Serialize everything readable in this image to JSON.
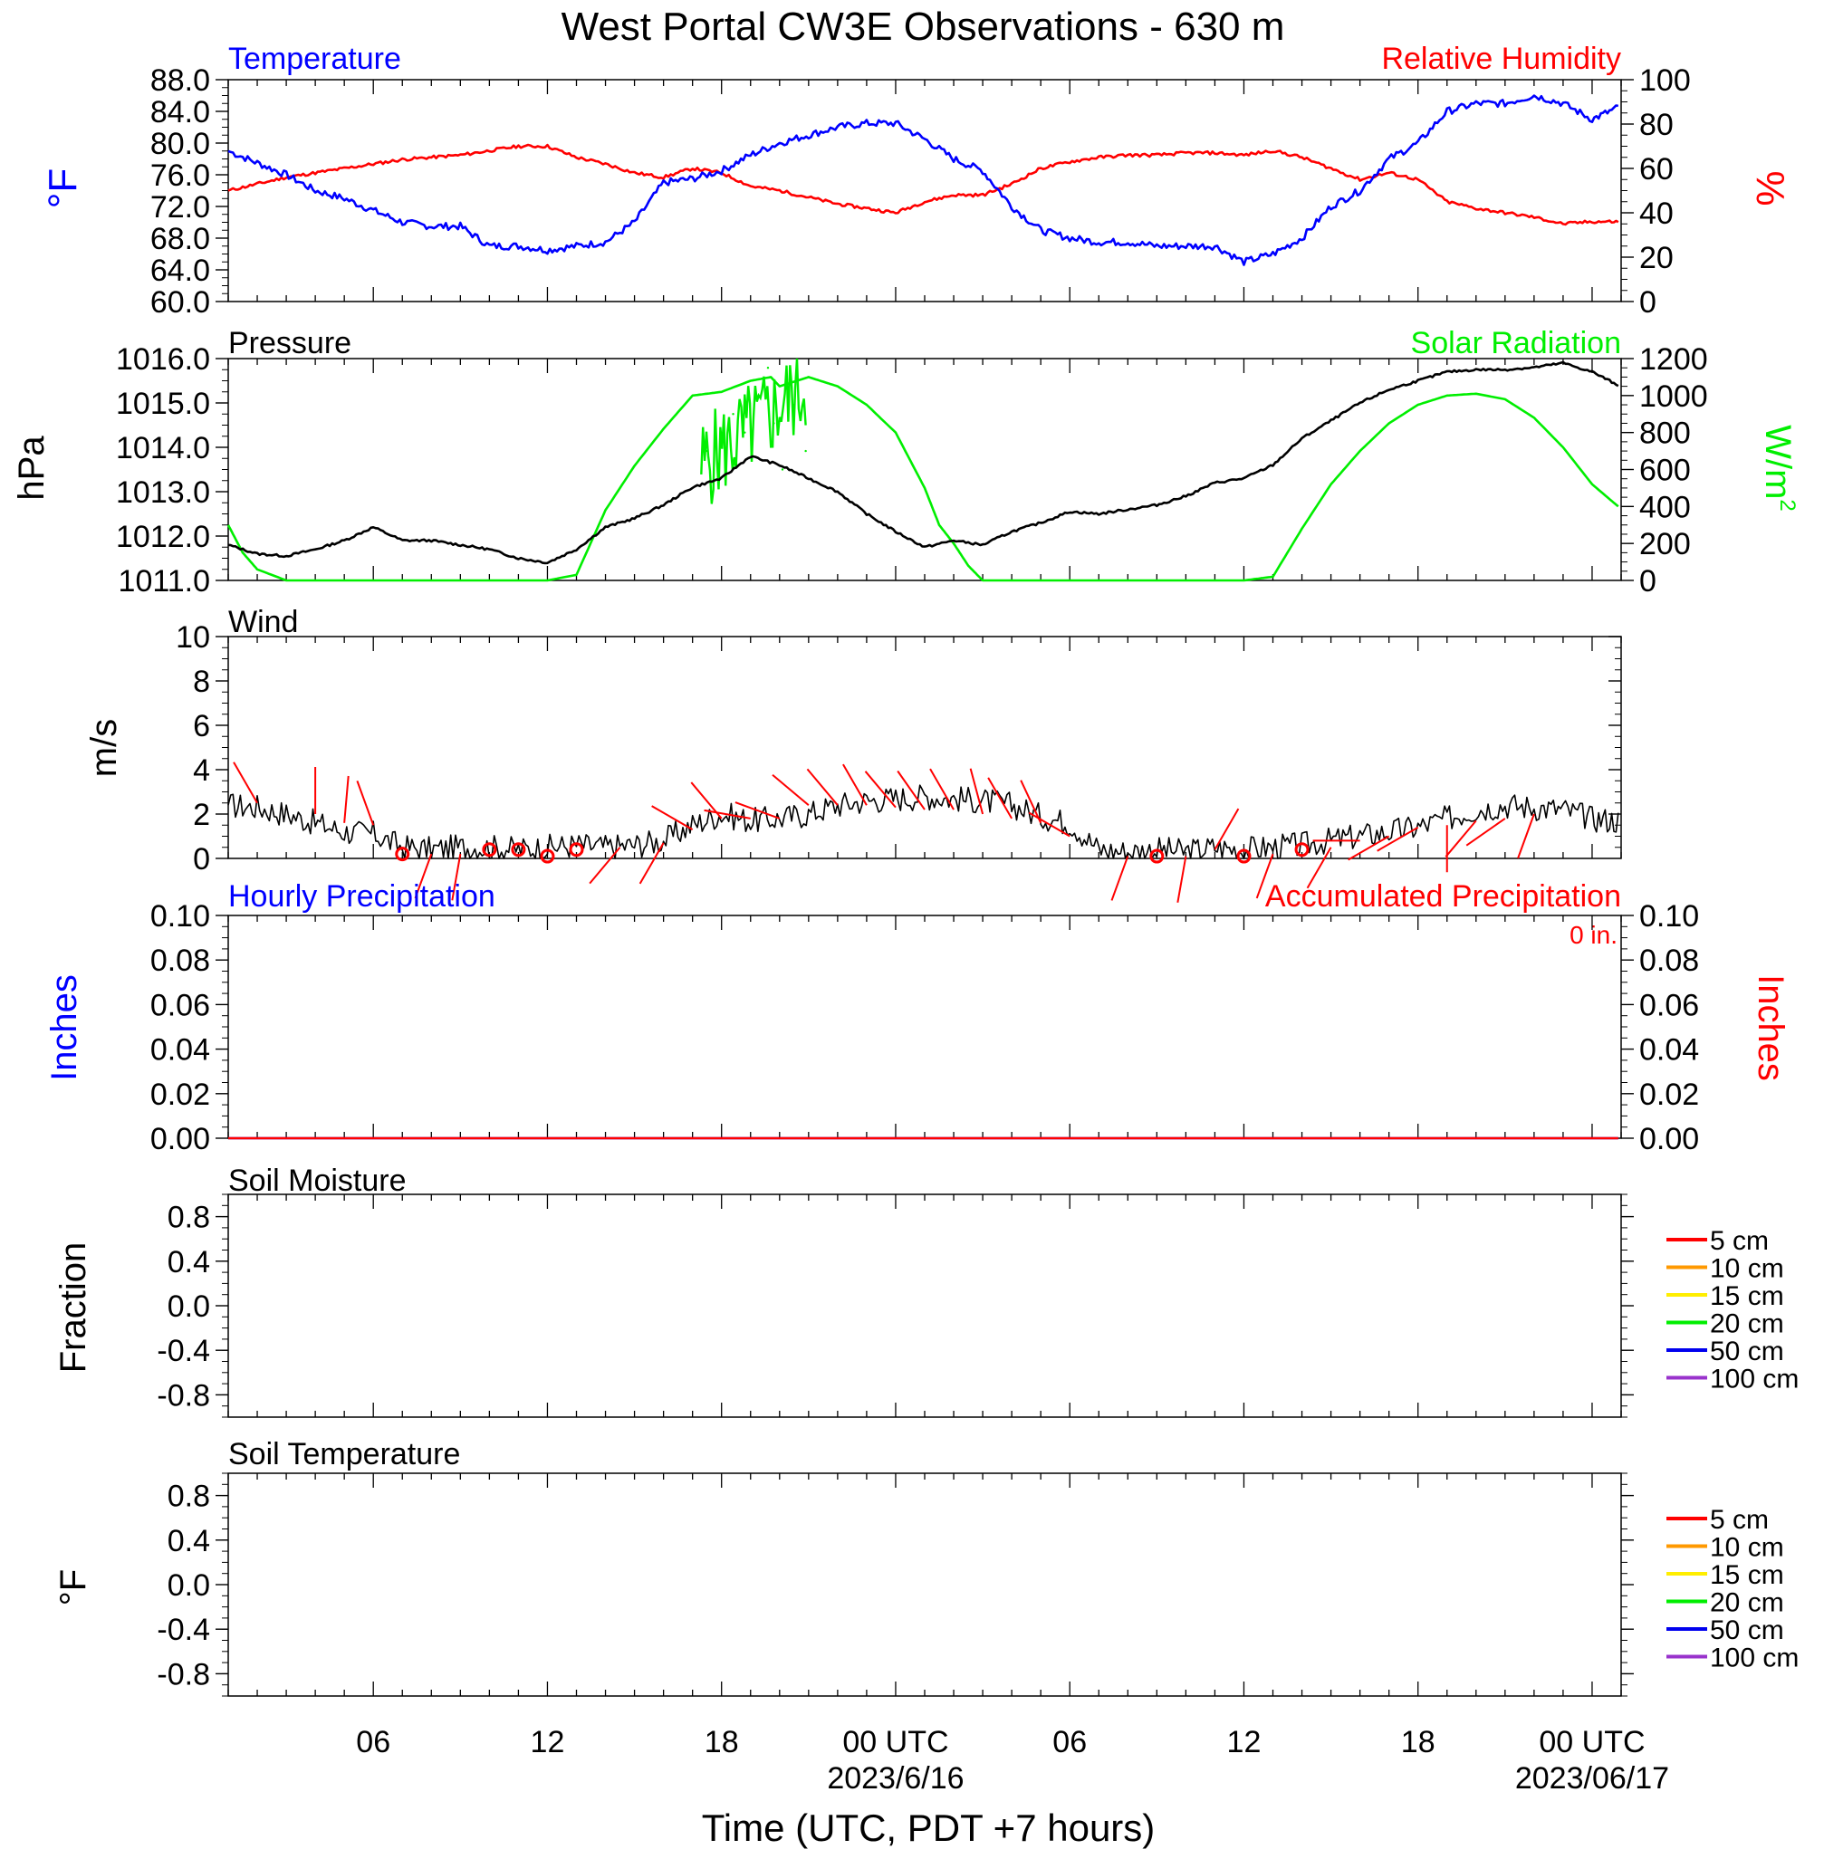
{
  "title": "West Portal CW3E Observations - 630 m",
  "x_axis": {
    "label": "Time (UTC, PDT +7 hours)",
    "start_hour": 1,
    "end_hour": 49,
    "major_ticks": [
      {
        "hour": 6,
        "label": "06"
      },
      {
        "hour": 12,
        "label": "12"
      },
      {
        "hour": 18,
        "label": "18"
      },
      {
        "hour": 24,
        "label": "00 UTC",
        "date": "2023/6/16"
      },
      {
        "hour": 30,
        "label": "06"
      },
      {
        "hour": 36,
        "label": "12"
      },
      {
        "hour": 42,
        "label": "18"
      },
      {
        "hour": 48,
        "label": "00 UTC",
        "date": "2023/06/17"
      }
    ]
  },
  "colors": {
    "temperature": "#0000ff",
    "humidity": "#ff0000",
    "pressure": "#000000",
    "solar": "#00ee00",
    "wind": "#000000",
    "barb": "#ff0000",
    "hourly_precip": "#0000ff",
    "accum_precip": "#ff0000"
  },
  "panels": {
    "temp_rh": {
      "left_title": "Temperature",
      "right_title": "Relative Humidity",
      "left_unit": "°F",
      "right_unit": "%",
      "left_ticks": [
        "88.0",
        "84.0",
        "80.0",
        "76.0",
        "72.0",
        "68.0",
        "64.0",
        "60.0"
      ],
      "right_ticks": [
        "100",
        "80",
        "60",
        "40",
        "20",
        "0"
      ]
    },
    "pressure_solar": {
      "left_title": "Pressure",
      "right_title": "Solar Radiation",
      "left_unit": "hPa",
      "right_unit": "W/m",
      "right_unit_sup": "2",
      "left_ticks": [
        "1016.0",
        "1015.0",
        "1014.0",
        "1013.0",
        "1012.0",
        "1011.0"
      ],
      "right_ticks": [
        "1200",
        "1000",
        "800",
        "600",
        "400",
        "200",
        "0"
      ]
    },
    "wind": {
      "title": "Wind",
      "unit": "m/s",
      "ticks": [
        "10",
        "8",
        "6",
        "4",
        "2",
        "0"
      ]
    },
    "precip": {
      "left_title": "Hourly Precipitation",
      "right_title": "Accumulated Precipitation",
      "total": "0 in.",
      "left_unit": "Inches",
      "right_unit": "Inches",
      "left_ticks": [
        "0.10",
        "0.08",
        "0.06",
        "0.04",
        "0.02",
        "0.00"
      ],
      "right_ticks": [
        "0.10",
        "0.08",
        "0.06",
        "0.04",
        "0.02",
        "0.00"
      ]
    },
    "soil_moisture": {
      "title": "Soil Moisture",
      "unit": "Fraction",
      "ticks": [
        "0.8",
        "0.4",
        "0.0",
        "-0.4",
        "-0.8"
      ]
    },
    "soil_temp": {
      "title": "Soil Temperature",
      "unit": "°F",
      "ticks": [
        "0.8",
        "0.4",
        "0.0",
        "-0.4",
        "-0.8"
      ]
    }
  },
  "legend": [
    {
      "label": "5 cm",
      "color": "#ff0000"
    },
    {
      "label": "10 cm",
      "color": "#ff9900"
    },
    {
      "label": "15 cm",
      "color": "#ffee00"
    },
    {
      "label": "20 cm",
      "color": "#00ee00"
    },
    {
      "label": "50 cm",
      "color": "#0000ee"
    },
    {
      "label": "100 cm",
      "color": "#9933cc"
    }
  ],
  "chart_data": [
    {
      "type": "line",
      "title": "Temperature / Relative Humidity",
      "x_units": "hours since 2023-06-15 00 UTC",
      "series": [
        {
          "name": "Temperature",
          "unit": "°F",
          "axis": "left",
          "ylim": [
            60,
            88
          ],
          "x": [
            1,
            2,
            3,
            4,
            5,
            6,
            7,
            8,
            9,
            10,
            11,
            12,
            13,
            14,
            15,
            16,
            17,
            18,
            19,
            20,
            21,
            22,
            23,
            24,
            25,
            26,
            27,
            28,
            29,
            30,
            31,
            32,
            33,
            34,
            35,
            36,
            37,
            38,
            39,
            40,
            41,
            42,
            43,
            44,
            45,
            46,
            47,
            48,
            48.9
          ],
          "y": [
            79,
            77.5,
            76,
            74,
            73,
            71.5,
            70,
            69.5,
            69.5,
            67,
            67,
            66.5,
            67,
            67.5,
            70,
            75,
            75.5,
            76.5,
            78.5,
            80,
            81,
            82,
            82.5,
            82.5,
            80.5,
            78,
            76.5,
            72,
            69,
            68,
            67.5,
            67.5,
            67,
            67,
            67,
            65,
            66,
            68,
            72,
            74,
            78,
            80,
            84,
            85,
            85,
            86,
            85,
            83,
            84.5
          ]
        },
        {
          "name": "Relative Humidity",
          "unit": "%",
          "axis": "right",
          "ylim": [
            0,
            100
          ],
          "x": [
            1,
            2,
            3,
            4,
            5,
            6,
            7,
            8,
            9,
            10,
            11,
            12,
            13,
            14,
            15,
            16,
            17,
            18,
            19,
            20,
            21,
            22,
            23,
            24,
            25,
            26,
            27,
            28,
            29,
            30,
            31,
            32,
            33,
            34,
            35,
            36,
            37,
            38,
            39,
            40,
            41,
            42,
            43,
            44,
            45,
            46,
            47,
            48,
            48.9
          ],
          "y": [
            50,
            53,
            56,
            58,
            60,
            62,
            64,
            65,
            66,
            68,
            70,
            70,
            65,
            62,
            58,
            56,
            60,
            58,
            52,
            50,
            47,
            44,
            42,
            40,
            45,
            48,
            48,
            53,
            60,
            63,
            65,
            66,
            66,
            67,
            67,
            66,
            68,
            65,
            60,
            55,
            58,
            55,
            45,
            42,
            40,
            38,
            35,
            36,
            36
          ]
        }
      ]
    },
    {
      "type": "line",
      "title": "Pressure / Solar Radiation",
      "x_units": "hours since 2023-06-15 00 UTC",
      "series": [
        {
          "name": "Pressure",
          "unit": "hPa",
          "axis": "left",
          "ylim": [
            1011,
            1016
          ],
          "x": [
            1,
            2,
            3,
            4,
            5,
            6,
            7,
            8,
            9,
            10,
            11,
            12,
            13,
            14,
            15,
            16,
            17,
            18,
            19,
            20,
            21,
            22,
            23,
            24,
            25,
            26,
            27,
            28,
            29,
            30,
            31,
            32,
            33,
            34,
            35,
            36,
            37,
            38,
            39,
            40,
            41,
            42,
            43,
            44,
            45,
            46,
            47,
            48,
            48.9
          ],
          "y": [
            1011.8,
            1011.6,
            1011.55,
            1011.7,
            1011.9,
            1012.2,
            1011.9,
            1011.9,
            1011.8,
            1011.7,
            1011.5,
            1011.4,
            1011.7,
            1012.2,
            1012.4,
            1012.7,
            1013.1,
            1013.3,
            1013.8,
            1013.6,
            1013.3,
            1013,
            1012.5,
            1012.1,
            1011.75,
            1011.9,
            1011.8,
            1012.1,
            1012.3,
            1012.55,
            1012.5,
            1012.6,
            1012.7,
            1012.9,
            1013.2,
            1013.3,
            1013.6,
            1014.2,
            1014.6,
            1015,
            1015.3,
            1015.5,
            1015.7,
            1015.75,
            1015.75,
            1015.8,
            1015.9,
            1015.7,
            1015.4
          ]
        },
        {
          "name": "Solar Radiation",
          "unit": "W/m2",
          "axis": "right",
          "ylim": [
            0,
            1200
          ],
          "x": [
            1,
            1.5,
            2,
            3,
            4,
            5,
            6,
            7,
            8,
            9,
            10,
            11,
            12,
            13,
            14,
            15,
            16,
            17,
            18,
            19,
            19.7,
            20,
            21,
            22,
            23,
            24,
            25,
            25.5,
            26,
            26.5,
            27,
            28,
            29,
            30,
            31,
            32,
            33,
            34,
            35,
            36,
            37,
            38,
            39,
            40,
            41,
            42,
            43,
            44,
            45,
            46,
            47,
            48,
            48.9
          ],
          "y": [
            300,
            150,
            60,
            0,
            0,
            0,
            0,
            0,
            0,
            0,
            0,
            0,
            0,
            30,
            380,
            620,
            820,
            1000,
            1020,
            1080,
            1100,
            1050,
            1100,
            1050,
            950,
            800,
            500,
            300,
            200,
            80,
            0,
            0,
            0,
            0,
            0,
            0,
            0,
            0,
            0,
            0,
            20,
            280,
            520,
            700,
            850,
            950,
            1000,
            1010,
            980,
            880,
            720,
            520,
            400
          ]
        },
        {
          "name": "Solar Radiation (noise)",
          "unit": "W/m2",
          "axis": "right",
          "ylim": [
            0,
            1200
          ],
          "x": [
            17.5,
            18.4,
            18.8,
            19.2,
            19.6,
            19.8,
            20.1,
            20.5,
            20.9
          ],
          "y": [
            700,
            900,
            800,
            1000,
            1150,
            850,
            600,
            950,
            700
          ]
        }
      ]
    },
    {
      "type": "line",
      "title": "Wind",
      "unit": "m/s",
      "ylim": [
        0,
        10
      ],
      "x_units": "hours since 2023-06-15 00 UTC",
      "series": [
        {
          "name": "Wind speed",
          "x": [
            1,
            2,
            3,
            4,
            5,
            6,
            7,
            8,
            9,
            10,
            11,
            12,
            13,
            14,
            15,
            16,
            17,
            18,
            19,
            20,
            21,
            22,
            23,
            24,
            25,
            26,
            27,
            28,
            29,
            30,
            31,
            32,
            33,
            34,
            35,
            36,
            37,
            38,
            39,
            40,
            41,
            42,
            43,
            44,
            45,
            46,
            47,
            48,
            48.9
          ],
          "y": [
            2.4,
            2.3,
            2,
            1.6,
            1.2,
            1.1,
            0.5,
            0.4,
            0.5,
            0.5,
            0.4,
            0.5,
            0.6,
            0.5,
            0.6,
            0.8,
            1.5,
            2,
            1.7,
            1.8,
            2,
            2.4,
            2.6,
            2.7,
            2.8,
            2.7,
            2.6,
            2.4,
            1.9,
            1.6,
            0.4,
            0.3,
            0.4,
            0.3,
            0.5,
            0.4,
            0.5,
            0.6,
            0.8,
            1,
            1.2,
            1.4,
            1.8,
            2.2,
            2.4,
            2.3,
            2.2,
            1.8,
            1.7
          ]
        }
      ],
      "barbs": [
        {
          "x": 2,
          "y": 2.5,
          "dir": 330
        },
        {
          "x": 4,
          "y": 2,
          "dir": 0
        },
        {
          "x": 5,
          "y": 1.6,
          "dir": 5
        },
        {
          "x": 6,
          "y": 1.5,
          "dir": 340
        },
        {
          "x": 7,
          "y": 0.2,
          "calm": true
        },
        {
          "x": 8,
          "y": 0.2,
          "dir": 200
        },
        {
          "x": 9,
          "y": 0.2,
          "dir": 190
        },
        {
          "x": 10,
          "y": 0.4,
          "calm": true
        },
        {
          "x": 11,
          "y": 0.4,
          "calm": true
        },
        {
          "x": 12,
          "y": 0.1,
          "calm": true
        },
        {
          "x": 13,
          "y": 0.4,
          "calm": true
        },
        {
          "x": 14.5,
          "y": 0.5,
          "dir": 220
        },
        {
          "x": 16,
          "y": 0.7,
          "dir": 210
        },
        {
          "x": 17,
          "y": 1.3,
          "dir": 300
        },
        {
          "x": 18,
          "y": 1.8,
          "dir": 320
        },
        {
          "x": 19,
          "y": 1.8,
          "dir": 280
        },
        {
          "x": 20,
          "y": 1.8,
          "dir": 290
        },
        {
          "x": 21,
          "y": 2.4,
          "dir": 310
        },
        {
          "x": 22,
          "y": 2.4,
          "dir": 320
        },
        {
          "x": 23,
          "y": 2.4,
          "dir": 330
        },
        {
          "x": 24,
          "y": 2.3,
          "dir": 320
        },
        {
          "x": 25,
          "y": 2.2,
          "dir": 325
        },
        {
          "x": 26,
          "y": 2.2,
          "dir": 330
        },
        {
          "x": 27,
          "y": 2,
          "dir": 345
        },
        {
          "x": 28,
          "y": 1.8,
          "dir": 330
        },
        {
          "x": 29,
          "y": 1.6,
          "dir": 335
        },
        {
          "x": 30,
          "y": 1,
          "dir": 300
        },
        {
          "x": 32,
          "y": 0.1,
          "dir": 200
        },
        {
          "x": 33,
          "y": 0.1,
          "calm": true
        },
        {
          "x": 34,
          "y": 0.1,
          "dir": 190
        },
        {
          "x": 35,
          "y": 0.4,
          "dir": 30
        },
        {
          "x": 36,
          "y": 0.1,
          "calm": true
        },
        {
          "x": 37,
          "y": 0.2,
          "dir": 200
        },
        {
          "x": 38,
          "y": 0.4,
          "calm": true
        },
        {
          "x": 39,
          "y": 0.5,
          "dir": 210
        },
        {
          "x": 40,
          "y": 0.8,
          "dir": 270
        },
        {
          "x": 41,
          "y": 1,
          "dir": 240
        },
        {
          "x": 42,
          "y": 1.4,
          "dir": 240
        },
        {
          "x": 43,
          "y": 1.5,
          "dir": 180
        },
        {
          "x": 44,
          "y": 1.7,
          "dir": 220
        },
        {
          "x": 45,
          "y": 1.8,
          "dir": 235
        },
        {
          "x": 46,
          "y": 2,
          "dir": 200
        }
      ]
    },
    {
      "type": "line",
      "title": "Hourly Precipitation / Accumulated Precipitation",
      "unit": "Inches",
      "ylim": [
        0,
        0.1
      ],
      "series": [
        {
          "name": "Hourly Precipitation",
          "x": [
            1,
            48.9
          ],
          "y": [
            0,
            0
          ]
        },
        {
          "name": "Accumulated Precipitation",
          "x": [
            1,
            48.9
          ],
          "y": [
            0,
            0
          ]
        }
      ]
    },
    {
      "type": "line",
      "title": "Soil Moisture",
      "unit": "Fraction",
      "ylim": [
        -1,
        1
      ],
      "series": []
    },
    {
      "type": "line",
      "title": "Soil Temperature",
      "unit": "°F",
      "ylim": [
        -1,
        1
      ],
      "series": []
    }
  ]
}
